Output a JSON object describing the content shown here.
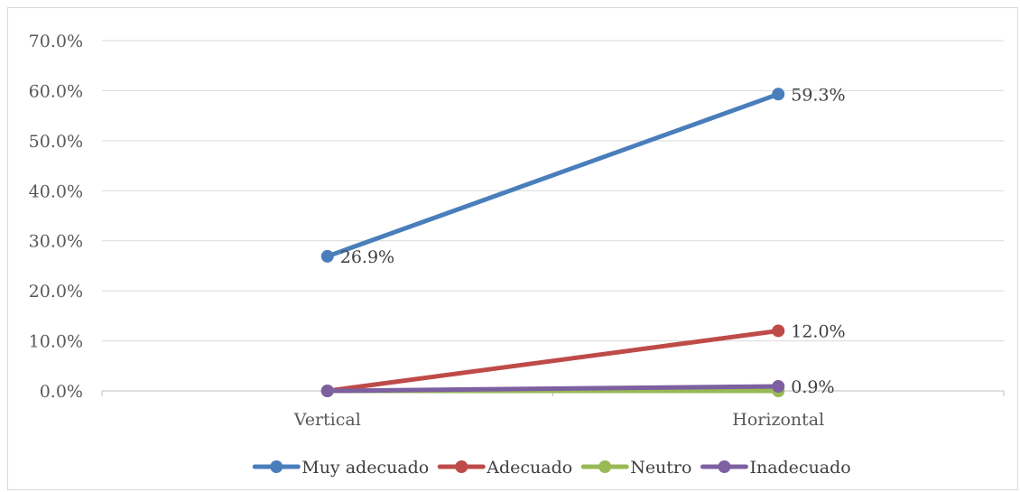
{
  "chart_data": {
    "type": "line",
    "categories": [
      "Vertical",
      "Horizontal"
    ],
    "ylim": [
      0,
      70
    ],
    "y_tick_step": 10,
    "y_tick_labels": [
      "0.0%",
      "10.0%",
      "20.0%",
      "30.0%",
      "40.0%",
      "50.0%",
      "60.0%",
      "70.0%"
    ],
    "grid": true,
    "legend_position": "bottom",
    "series": [
      {
        "name": "Muy adecuado",
        "values": [
          26.9,
          59.3
        ],
        "color": "#4a7ebb",
        "labels": [
          "26.9%",
          "59.3%"
        ]
      },
      {
        "name": "Adecuado",
        "values": [
          0.0,
          12.0
        ],
        "color": "#be4b48",
        "labels": [
          "",
          "12.0%"
        ]
      },
      {
        "name": "Neutro",
        "values": [
          0.0,
          0.0
        ],
        "color": "#98b954",
        "labels": [
          "",
          ""
        ]
      },
      {
        "name": "Inadecuado",
        "values": [
          0.0,
          0.9
        ],
        "color": "#7d60a0",
        "labels": [
          "",
          "0.9%"
        ]
      }
    ]
  }
}
